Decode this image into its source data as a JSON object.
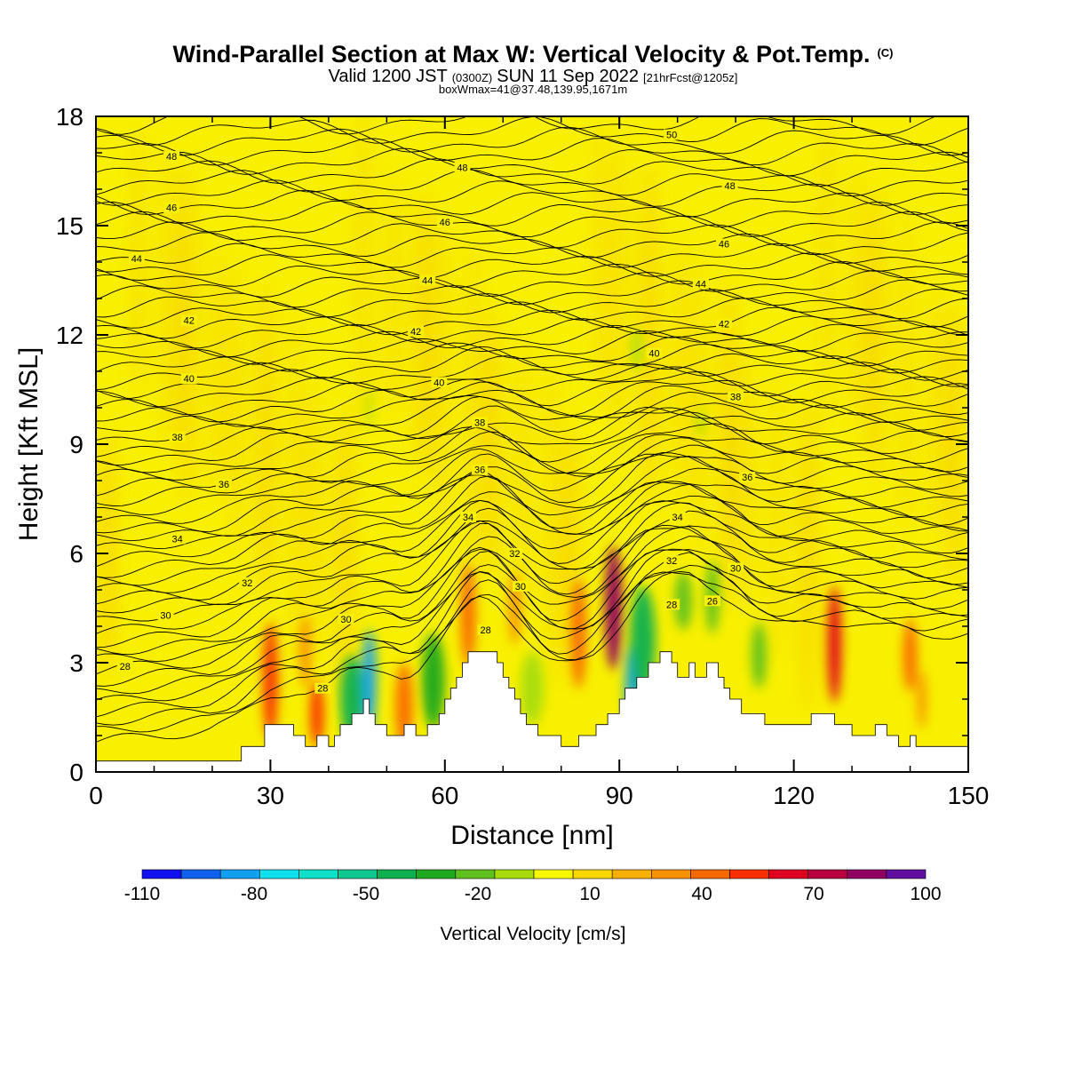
{
  "title": {
    "main": "Wind-Parallel Section at Max W: Vertical Velocity & Pot.Temp.",
    "copyright": "(C)",
    "valid_prefix": "Valid 1200 JST",
    "valid_z": "(0300Z)",
    "valid_date": "SUN 11 Sep 2022",
    "forecast": "[21hrFcst@1205z]",
    "boxinfo": "boxWmax=41@37.48,139.95,1671m"
  },
  "chart_data": {
    "type": "cross-section contour",
    "xlabel": "Distance [nm]",
    "ylabel": "Height [Kft MSL]",
    "xlim": [
      0,
      150
    ],
    "ylim": [
      0,
      18
    ],
    "x_ticks": [
      "0",
      "30",
      "60",
      "90",
      "120",
      "150"
    ],
    "y_ticks": [
      "0",
      "3",
      "6",
      "9",
      "12",
      "15",
      "18"
    ],
    "colorbar": {
      "title": "Vertical Velocity [cm/s]",
      "labels": [
        "-110",
        "-80",
        "-50",
        "-20",
        "10",
        "40",
        "70",
        "100"
      ],
      "colors": [
        "#1010f0",
        "#1060f0",
        "#10a0f0",
        "#10e0f0",
        "#10e0c8",
        "#10c890",
        "#10b050",
        "#20a820",
        "#60c020",
        "#a8dc10",
        "#f8f800",
        "#f8d800",
        "#f8b000",
        "#f89000",
        "#f86800",
        "#f83000",
        "#e00020",
        "#b80040",
        "#900060",
        "#6010a0"
      ]
    },
    "terrain_kft": [
      [
        0,
        0.3
      ],
      [
        25,
        0.3
      ],
      [
        25,
        0.7
      ],
      [
        29,
        0.7
      ],
      [
        29,
        1.3
      ],
      [
        34,
        1.3
      ],
      [
        34,
        1.0
      ],
      [
        36,
        1.0
      ],
      [
        36,
        0.7
      ],
      [
        38,
        0.7
      ],
      [
        38,
        1.0
      ],
      [
        40,
        1.0
      ],
      [
        40,
        0.7
      ],
      [
        41,
        0.7
      ],
      [
        41,
        1.0
      ],
      [
        42,
        1.0
      ],
      [
        42,
        1.3
      ],
      [
        44,
        1.3
      ],
      [
        44,
        1.6
      ],
      [
        46,
        1.6
      ],
      [
        46,
        2.0
      ],
      [
        47,
        2.0
      ],
      [
        47,
        1.6
      ],
      [
        48,
        1.6
      ],
      [
        48,
        1.3
      ],
      [
        50,
        1.3
      ],
      [
        50,
        1.0
      ],
      [
        53,
        1.0
      ],
      [
        53,
        1.3
      ],
      [
        55,
        1.3
      ],
      [
        55,
        1.0
      ],
      [
        57,
        1.0
      ],
      [
        57,
        1.3
      ],
      [
        59,
        1.3
      ],
      [
        59,
        1.6
      ],
      [
        60,
        1.6
      ],
      [
        60,
        2.0
      ],
      [
        61,
        2.0
      ],
      [
        61,
        2.3
      ],
      [
        62,
        2.3
      ],
      [
        62,
        2.6
      ],
      [
        63,
        2.6
      ],
      [
        63,
        3.0
      ],
      [
        64,
        3.0
      ],
      [
        64,
        3.3
      ],
      [
        69,
        3.3
      ],
      [
        69,
        3.0
      ],
      [
        70,
        3.0
      ],
      [
        70,
        2.6
      ],
      [
        71,
        2.6
      ],
      [
        71,
        2.3
      ],
      [
        72,
        2.3
      ],
      [
        72,
        2.0
      ],
      [
        73,
        2.0
      ],
      [
        73,
        1.6
      ],
      [
        74,
        1.6
      ],
      [
        74,
        1.3
      ],
      [
        76,
        1.3
      ],
      [
        76,
        1.0
      ],
      [
        80,
        1.0
      ],
      [
        80,
        0.7
      ],
      [
        83,
        0.7
      ],
      [
        83,
        1.0
      ],
      [
        86,
        1.0
      ],
      [
        86,
        1.3
      ],
      [
        88,
        1.3
      ],
      [
        88,
        1.6
      ],
      [
        90,
        1.6
      ],
      [
        90,
        2.0
      ],
      [
        91,
        2.0
      ],
      [
        91,
        2.3
      ],
      [
        93,
        2.3
      ],
      [
        93,
        2.6
      ],
      [
        95,
        2.6
      ],
      [
        95,
        3.0
      ],
      [
        97,
        3.0
      ],
      [
        97,
        3.3
      ],
      [
        99,
        3.3
      ],
      [
        99,
        3.0
      ],
      [
        100,
        3.0
      ],
      [
        100,
        2.6
      ],
      [
        102,
        2.6
      ],
      [
        102,
        3.0
      ],
      [
        103,
        3.0
      ],
      [
        103,
        2.6
      ],
      [
        105,
        2.6
      ],
      [
        105,
        3.0
      ],
      [
        107,
        3.0
      ],
      [
        107,
        2.6
      ],
      [
        108,
        2.6
      ],
      [
        108,
        2.3
      ],
      [
        109,
        2.3
      ],
      [
        109,
        2.0
      ],
      [
        111,
        2.0
      ],
      [
        111,
        1.6
      ],
      [
        115,
        1.6
      ],
      [
        115,
        1.3
      ],
      [
        123,
        1.3
      ],
      [
        123,
        1.6
      ],
      [
        127,
        1.6
      ],
      [
        127,
        1.3
      ],
      [
        130,
        1.3
      ],
      [
        130,
        1.0
      ],
      [
        134,
        1.0
      ],
      [
        134,
        1.3
      ],
      [
        136,
        1.3
      ],
      [
        136,
        1.0
      ],
      [
        138,
        1.0
      ],
      [
        138,
        0.7
      ],
      [
        140,
        0.7
      ],
      [
        140,
        1.0
      ],
      [
        141,
        1.0
      ],
      [
        141,
        0.7
      ],
      [
        150,
        0.7
      ]
    ],
    "contour_labels": [
      {
        "text": "50",
        "x": 99,
        "y": 17.5
      },
      {
        "text": "48",
        "x": 13,
        "y": 16.9
      },
      {
        "text": "48",
        "x": 63,
        "y": 16.6
      },
      {
        "text": "48",
        "x": 109,
        "y": 16.1
      },
      {
        "text": "46",
        "x": 13,
        "y": 15.5
      },
      {
        "text": "46",
        "x": 60,
        "y": 15.1
      },
      {
        "text": "46",
        "x": 108,
        "y": 14.5
      },
      {
        "text": "44",
        "x": 7,
        "y": 14.1
      },
      {
        "text": "44",
        "x": 57,
        "y": 13.5
      },
      {
        "text": "44",
        "x": 104,
        "y": 13.4
      },
      {
        "text": "42",
        "x": 16,
        "y": 12.4
      },
      {
        "text": "42",
        "x": 55,
        "y": 12.1
      },
      {
        "text": "42",
        "x": 108,
        "y": 12.3
      },
      {
        "text": "40",
        "x": 16,
        "y": 10.8
      },
      {
        "text": "40",
        "x": 59,
        "y": 10.7
      },
      {
        "text": "40",
        "x": 96,
        "y": 11.5
      },
      {
        "text": "38",
        "x": 14,
        "y": 9.2
      },
      {
        "text": "38",
        "x": 66,
        "y": 9.6
      },
      {
        "text": "38",
        "x": 110,
        "y": 10.3
      },
      {
        "text": "36",
        "x": 22,
        "y": 7.9
      },
      {
        "text": "36",
        "x": 66,
        "y": 8.3
      },
      {
        "text": "36",
        "x": 112,
        "y": 8.1
      },
      {
        "text": "34",
        "x": 14,
        "y": 6.4
      },
      {
        "text": "34",
        "x": 64,
        "y": 7.0
      },
      {
        "text": "34",
        "x": 100,
        "y": 7.0
      },
      {
        "text": "32",
        "x": 26,
        "y": 5.2
      },
      {
        "text": "32",
        "x": 72,
        "y": 6.0
      },
      {
        "text": "32",
        "x": 99,
        "y": 5.8
      },
      {
        "text": "30",
        "x": 12,
        "y": 4.3
      },
      {
        "text": "30",
        "x": 43,
        "y": 4.2
      },
      {
        "text": "30",
        "x": 73,
        "y": 5.1
      },
      {
        "text": "30",
        "x": 110,
        "y": 5.6
      },
      {
        "text": "28",
        "x": 5,
        "y": 2.9
      },
      {
        "text": "28",
        "x": 39,
        "y": 2.3
      },
      {
        "text": "28",
        "x": 67,
        "y": 3.9
      },
      {
        "text": "28",
        "x": 99,
        "y": 4.6
      },
      {
        "text": "26",
        "x": 106,
        "y": 4.7
      }
    ],
    "w_features": [
      {
        "x": 30,
        "y": 2.5,
        "w": 1.3,
        "h": 1.6,
        "value": 40
      },
      {
        "x": 38,
        "y": 1.6,
        "w": 1.2,
        "h": 0.9,
        "value": 40
      },
      {
        "x": 47,
        "y": 2.5,
        "w": 1.2,
        "h": 1.4,
        "value": -90
      },
      {
        "x": 44,
        "y": 2.0,
        "w": 2.0,
        "h": 1.2,
        "value": -50
      },
      {
        "x": 58,
        "y": 2.5,
        "w": 2.0,
        "h": 1.3,
        "value": -40
      },
      {
        "x": 53,
        "y": 1.8,
        "w": 1.5,
        "h": 1.2,
        "value": 30
      },
      {
        "x": 64,
        "y": 4.3,
        "w": 1.3,
        "h": 1.4,
        "value": 30
      },
      {
        "x": 75,
        "y": 2.3,
        "w": 2.0,
        "h": 1.0,
        "value": -20
      },
      {
        "x": 83,
        "y": 3.8,
        "w": 1.3,
        "h": 1.5,
        "value": 30
      },
      {
        "x": 89,
        "y": 4.5,
        "w": 1.5,
        "h": 1.7,
        "value": 70
      },
      {
        "x": 92,
        "y": 2.3,
        "w": 1.0,
        "h": 1.2,
        "value": -90
      },
      {
        "x": 94,
        "y": 3.6,
        "w": 2.2,
        "h": 1.5,
        "value": -50
      },
      {
        "x": 101,
        "y": 4.7,
        "w": 1.5,
        "h": 0.8,
        "value": -30
      },
      {
        "x": 106,
        "y": 4.8,
        "w": 1.2,
        "h": 1.0,
        "value": -30
      },
      {
        "x": 114,
        "y": 3.2,
        "w": 1.3,
        "h": 0.9,
        "value": -30
      },
      {
        "x": 127,
        "y": 3.5,
        "w": 1.2,
        "h": 1.6,
        "value": 50
      },
      {
        "x": 140,
        "y": 3.2,
        "w": 1.2,
        "h": 1.0,
        "value": 30
      },
      {
        "x": 93,
        "y": 11.6,
        "w": 0.8,
        "h": 0.6,
        "value": -20
      },
      {
        "x": 47,
        "y": 10.0,
        "w": 0.4,
        "h": 0.6,
        "value": -20
      },
      {
        "x": 104,
        "y": 9.6,
        "w": 0.6,
        "h": 0.4,
        "value": -20
      },
      {
        "x": 72,
        "y": 4.5,
        "w": 1.0,
        "h": 1.0,
        "value": 20
      },
      {
        "x": 36,
        "y": 3.3,
        "w": 1.0,
        "h": 1.0,
        "value": 20
      },
      {
        "x": 142,
        "y": 2.0,
        "w": 0.8,
        "h": 0.8,
        "value": 20
      }
    ]
  }
}
